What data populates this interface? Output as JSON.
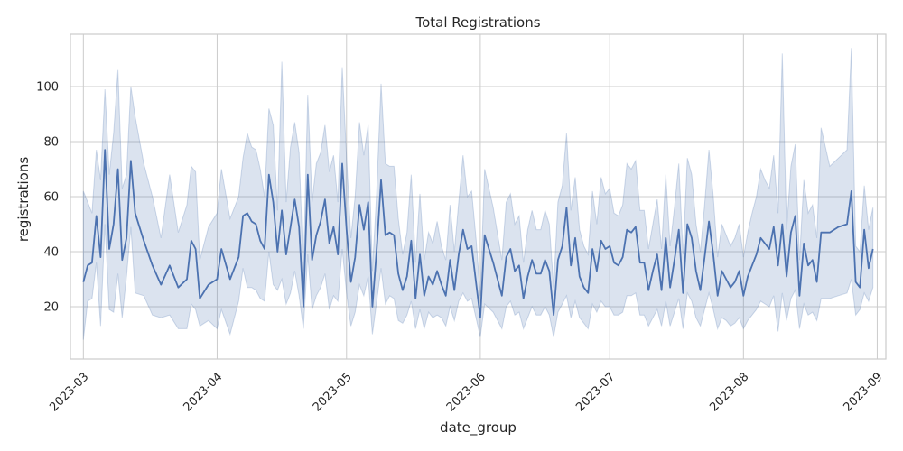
{
  "chart_data": {
    "type": "line",
    "title": "Total Registrations",
    "xlabel": "date_group",
    "ylabel": "registrations",
    "x_range": [
      "2023-02-26",
      "2023-09-03"
    ],
    "ylim": [
      1,
      119
    ],
    "grid": true,
    "x_ticks": [
      "2023-03-01",
      "2023-04-01",
      "2023-05-01",
      "2023-06-01",
      "2023-07-01",
      "2023-08-01",
      "2023-09-01"
    ],
    "x_tick_labels": [
      "2023-03",
      "2023-04",
      "2023-05",
      "2023-06",
      "2023-07",
      "2023-08",
      "2023-09"
    ],
    "y_ticks": [
      20,
      40,
      60,
      80,
      100
    ],
    "y_tick_labels": [
      "20",
      "40",
      "60",
      "80",
      "100"
    ],
    "colors": {
      "line": "#4c72b0",
      "band": "#4c72b0",
      "grid": "#cccccc",
      "frame": "#cccccc"
    },
    "series": [
      {
        "x": [
          "2023-03-01",
          "2023-03-02",
          "2023-03-03",
          "2023-03-04",
          "2023-03-05",
          "2023-03-06",
          "2023-03-07",
          "2023-03-08",
          "2023-03-09",
          "2023-03-10",
          "2023-03-11",
          "2023-03-12",
          "2023-03-13",
          "2023-03-15",
          "2023-03-17",
          "2023-03-19",
          "2023-03-21",
          "2023-03-23",
          "2023-03-25",
          "2023-03-26",
          "2023-03-27",
          "2023-03-28",
          "2023-03-30",
          "2023-04-01",
          "2023-04-02",
          "2023-04-04",
          "2023-04-06",
          "2023-04-07",
          "2023-04-08",
          "2023-04-09",
          "2023-04-10",
          "2023-04-11",
          "2023-04-12",
          "2023-04-13",
          "2023-04-14",
          "2023-04-15",
          "2023-04-16",
          "2023-04-17",
          "2023-04-18",
          "2023-04-19",
          "2023-04-20",
          "2023-04-21",
          "2023-04-22",
          "2023-04-23",
          "2023-04-24",
          "2023-04-25",
          "2023-04-26",
          "2023-04-27",
          "2023-04-28",
          "2023-04-29",
          "2023-04-30",
          "2023-05-01",
          "2023-05-02",
          "2023-05-03",
          "2023-05-04",
          "2023-05-05",
          "2023-05-06",
          "2023-05-07",
          "2023-05-08",
          "2023-05-09",
          "2023-05-10",
          "2023-05-11",
          "2023-05-12",
          "2023-05-13",
          "2023-05-14",
          "2023-05-15",
          "2023-05-16",
          "2023-05-17",
          "2023-05-18",
          "2023-05-19",
          "2023-05-20",
          "2023-05-21",
          "2023-05-22",
          "2023-05-23",
          "2023-05-24",
          "2023-05-25",
          "2023-05-26",
          "2023-05-27",
          "2023-05-28",
          "2023-05-29",
          "2023-05-30",
          "2023-05-31",
          "2023-06-01",
          "2023-06-02",
          "2023-06-04",
          "2023-06-06",
          "2023-06-07",
          "2023-06-08",
          "2023-06-09",
          "2023-06-10",
          "2023-06-11",
          "2023-06-12",
          "2023-06-13",
          "2023-06-14",
          "2023-06-15",
          "2023-06-16",
          "2023-06-17",
          "2023-06-18",
          "2023-06-19",
          "2023-06-20",
          "2023-06-21",
          "2023-06-22",
          "2023-06-23",
          "2023-06-24",
          "2023-06-25",
          "2023-06-26",
          "2023-06-27",
          "2023-06-28",
          "2023-06-29",
          "2023-06-30",
          "2023-07-01",
          "2023-07-02",
          "2023-07-03",
          "2023-07-04",
          "2023-07-05",
          "2023-07-06",
          "2023-07-07",
          "2023-07-08",
          "2023-07-09",
          "2023-07-10",
          "2023-07-11",
          "2023-07-12",
          "2023-07-13",
          "2023-07-14",
          "2023-07-15",
          "2023-07-16",
          "2023-07-17",
          "2023-07-18",
          "2023-07-19",
          "2023-07-20",
          "2023-07-21",
          "2023-07-22",
          "2023-07-23",
          "2023-07-24",
          "2023-07-25",
          "2023-07-26",
          "2023-07-27",
          "2023-07-28",
          "2023-07-29",
          "2023-07-30",
          "2023-07-31",
          "2023-08-01",
          "2023-08-02",
          "2023-08-03",
          "2023-08-04",
          "2023-08-05",
          "2023-08-06",
          "2023-08-07",
          "2023-08-08",
          "2023-08-09",
          "2023-08-10",
          "2023-08-11",
          "2023-08-12",
          "2023-08-13",
          "2023-08-14",
          "2023-08-15",
          "2023-08-16",
          "2023-08-17",
          "2023-08-18",
          "2023-08-19",
          "2023-08-21",
          "2023-08-23",
          "2023-08-25",
          "2023-08-26",
          "2023-08-27",
          "2023-08-28",
          "2023-08-29",
          "2023-08-30",
          "2023-08-31"
        ],
        "values": [
          29,
          35,
          36,
          53,
          38,
          77,
          41,
          50,
          70,
          37,
          45,
          73,
          54,
          44,
          35,
          28,
          35,
          27,
          30,
          44,
          41,
          23,
          28,
          30,
          41,
          30,
          38,
          53,
          54,
          51,
          50,
          44,
          41,
          68,
          58,
          40,
          55,
          39,
          49,
          59,
          49,
          20,
          68,
          37,
          46,
          51,
          59,
          43,
          49,
          39,
          72,
          48,
          29,
          38,
          57,
          48,
          58,
          20,
          41,
          66,
          46,
          47,
          46,
          32,
          26,
          31,
          44,
          23,
          39,
          24,
          31,
          28,
          33,
          28,
          24,
          37,
          26,
          39,
          48,
          41,
          42,
          29,
          16,
          46,
          36,
          24,
          38,
          41,
          33,
          35,
          23,
          31,
          37,
          32,
          32,
          37,
          33,
          17,
          37,
          42,
          56,
          35,
          45,
          31,
          27,
          25,
          41,
          33,
          44,
          41,
          42,
          36,
          35,
          38,
          48,
          47,
          49,
          36,
          36,
          26,
          33,
          39,
          26,
          45,
          27,
          37,
          48,
          25,
          50,
          45,
          33,
          26,
          38,
          51,
          39,
          24,
          33,
          30,
          27,
          29,
          33,
          24,
          31,
          35,
          39,
          45,
          43,
          41,
          49,
          35,
          50,
          31,
          47,
          53,
          24,
          43,
          35,
          37,
          29,
          47,
          47,
          49,
          50,
          62,
          29,
          27,
          48,
          34,
          41
        ],
        "lower": [
          8,
          22,
          23,
          36,
          13,
          50,
          19,
          18,
          32,
          16,
          31,
          49,
          25,
          24,
          17,
          16,
          17,
          12,
          12,
          21,
          19,
          13,
          15,
          12,
          19,
          10,
          22,
          34,
          27,
          27,
          26,
          23,
          22,
          40,
          28,
          26,
          30,
          21,
          25,
          33,
          24,
          12,
          39,
          19,
          24,
          27,
          32,
          19,
          24,
          22,
          41,
          25,
          13,
          18,
          28,
          24,
          31,
          10,
          22,
          34,
          21,
          24,
          23,
          15,
          14,
          17,
          22,
          12,
          19,
          12,
          18,
          16,
          17,
          16,
          13,
          20,
          15,
          22,
          25,
          22,
          23,
          16,
          9,
          21,
          18,
          12,
          20,
          22,
          17,
          18,
          12,
          16,
          20,
          17,
          17,
          20,
          17,
          9,
          18,
          21,
          24,
          16,
          22,
          16,
          14,
          12,
          21,
          18,
          22,
          20,
          20,
          17,
          17,
          18,
          24,
          24,
          25,
          17,
          17,
          13,
          16,
          19,
          13,
          22,
          13,
          18,
          23,
          12,
          25,
          22,
          16,
          13,
          19,
          25,
          19,
          12,
          16,
          15,
          13,
          14,
          16,
          12,
          15,
          17,
          19,
          22,
          21,
          20,
          24,
          11,
          25,
          15,
          23,
          26,
          12,
          21,
          17,
          18,
          15,
          23,
          23,
          24,
          25,
          30,
          17,
          19,
          25,
          22,
          27
        ],
        "upper": [
          62,
          58,
          54,
          77,
          66,
          99,
          68,
          83,
          106,
          63,
          68,
          100,
          89,
          72,
          60,
          45,
          68,
          47,
          57,
          71,
          69,
          37,
          49,
          54,
          70,
          52,
          60,
          74,
          83,
          78,
          77,
          70,
          60,
          92,
          86,
          55,
          109,
          58,
          78,
          87,
          76,
          33,
          97,
          58,
          72,
          76,
          86,
          69,
          75,
          58,
          107,
          74,
          45,
          60,
          87,
          75,
          86,
          33,
          62,
          101,
          72,
          71,
          71,
          52,
          39,
          47,
          68,
          36,
          61,
          37,
          47,
          43,
          51,
          42,
          37,
          57,
          40,
          58,
          75,
          60,
          62,
          45,
          24,
          70,
          56,
          37,
          58,
          61,
          50,
          53,
          36,
          48,
          55,
          48,
          48,
          55,
          50,
          27,
          58,
          64,
          83,
          55,
          67,
          48,
          42,
          39,
          62,
          50,
          67,
          61,
          63,
          54,
          53,
          57,
          72,
          70,
          73,
          55,
          55,
          41,
          50,
          59,
          41,
          68,
          42,
          56,
          72,
          39,
          74,
          68,
          50,
          40,
          57,
          77,
          60,
          38,
          50,
          46,
          42,
          45,
          50,
          38,
          47,
          54,
          60,
          70,
          66,
          63,
          75,
          54,
          112,
          48,
          71,
          79,
          37,
          66,
          54,
          57,
          45,
          85,
          71,
          74,
          77,
          114,
          42,
          40,
          64,
          48,
          56
        ]
      }
    ]
  }
}
